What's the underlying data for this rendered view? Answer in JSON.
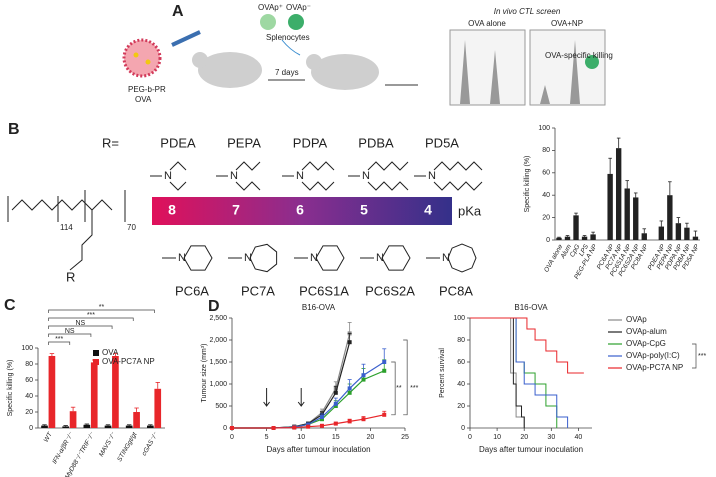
{
  "panels": {
    "a": "A",
    "b": "B",
    "c": "C",
    "d": "D"
  },
  "schematic": {
    "polymer": "PEG-b-PR",
    "antigen": "OVA",
    "interval": "7 days",
    "pulsed": "OVAp⁺",
    "unpulsed": "OVAp⁻",
    "cells": "Splenocytes",
    "screen": "In vivo CTL screen",
    "control": "OVA alone",
    "treated": "OVA+NP",
    "killing": "OVA-specific killing"
  },
  "polymer": {
    "r_label": "R=",
    "peg_units": "114",
    "pr_units": "70",
    "linear": [
      "PDEA",
      "PEPA",
      "PDPA",
      "PDBA",
      "PD5A"
    ],
    "cyclic": [
      "PC6A",
      "PC7A",
      "PC6S1A",
      "PC6S2A",
      "PC8A"
    ],
    "pka_values": [
      8,
      7,
      6,
      5,
      4
    ],
    "pka_label": "pKa"
  },
  "chart_data": [
    {
      "type": "bar",
      "ylabel": "Specific killing (%)",
      "categories": [
        "OVA alone",
        "Alum",
        "CpG",
        "LPS",
        "PEG-PLA NP",
        null,
        "PC6A NP",
        "PC7A NP",
        "PC6S1A NP",
        "PC6S2A NP",
        "PC8A NP",
        null,
        "PDEA NP",
        "PEPA NP",
        "PDPA NP",
        "PDBA NP",
        "PD5A NP"
      ],
      "values": [
        2,
        3,
        22,
        3,
        5,
        null,
        59,
        82,
        46,
        38,
        6,
        null,
        12,
        40,
        15,
        11,
        3
      ],
      "errors": [
        0.5,
        1,
        2,
        1,
        2,
        null,
        14,
        9,
        7,
        4,
        4,
        null,
        5,
        12,
        5,
        4,
        5
      ],
      "color": "#222222",
      "ylim": [
        0,
        100
      ],
      "yticks": [
        0,
        20,
        40,
        60,
        80,
        100
      ]
    },
    {
      "type": "bar",
      "ylabel": "Specific killing (%)",
      "categories": [
        "WT",
        "IFN-α/βR⁻/⁻",
        "MyD88⁻/⁻TRIF⁻/⁻",
        "MAVS⁻/⁻",
        "STINGgt/gt",
        "cGAS⁻/⁻"
      ],
      "series": [
        {
          "name": "OVA",
          "color": "#111111",
          "values": [
            3,
            2,
            4,
            3,
            3,
            3
          ],
          "errors": [
            1,
            1,
            1,
            1,
            1,
            1
          ]
        },
        {
          "name": "OVA-PC7A NP",
          "color": "#e8262a",
          "values": [
            90,
            21,
            82,
            90,
            20,
            49
          ],
          "errors": [
            3,
            5,
            3,
            3,
            5,
            8
          ]
        }
      ],
      "ylim": [
        0,
        100
      ],
      "yticks": [
        0,
        20,
        40,
        60,
        80,
        100
      ],
      "annotations": [
        "**",
        "***",
        "NS",
        "NS",
        "***"
      ]
    },
    {
      "type": "line",
      "title": "B16-OVA",
      "xlabel": "Days after tumour inoculation",
      "ylabel": "Tumour size (mm³)",
      "x": [
        0,
        6,
        9,
        11,
        13,
        15,
        17,
        19,
        22
      ],
      "series": [
        {
          "color": "#888888",
          "values": [
            0,
            0,
            30,
            100,
            350,
            900,
            2150,
            null,
            null
          ],
          "errors": [
            0,
            0,
            10,
            30,
            80,
            150,
            250,
            null,
            null
          ]
        },
        {
          "color": "#222222",
          "values": [
            0,
            0,
            30,
            100,
            300,
            800,
            1950,
            null,
            null
          ],
          "errors": [
            0,
            0,
            10,
            30,
            70,
            150,
            200,
            null,
            null
          ]
        },
        {
          "color": "#2ca02c",
          "values": [
            0,
            0,
            20,
            80,
            200,
            500,
            800,
            1100,
            1300
          ],
          "errors": [
            0,
            0,
            10,
            20,
            60,
            120,
            200,
            250,
            250
          ]
        },
        {
          "color": "#3a5fcd",
          "values": [
            0,
            0,
            20,
            80,
            250,
            550,
            900,
            1200,
            1500
          ],
          "errors": [
            0,
            0,
            10,
            20,
            70,
            130,
            200,
            250,
            300
          ]
        },
        {
          "color": "#e8262a",
          "values": [
            0,
            0,
            10,
            30,
            50,
            100,
            150,
            200,
            300
          ],
          "errors": [
            0,
            0,
            5,
            10,
            20,
            30,
            50,
            60,
            80
          ]
        }
      ],
      "xlim": [
        0,
        25
      ],
      "xticks": [
        0,
        5,
        10,
        15,
        20,
        25
      ],
      "ylim": [
        0,
        2500
      ],
      "yticks": [
        0,
        500,
        {
          "value": 1000,
          "label": "1,000"
        },
        {
          "value": 1500,
          "label": "1,500"
        },
        {
          "value": 2000,
          "label": "2,000"
        },
        {
          "value": 2500,
          "label": "2,500"
        }
      ],
      "annotations": [
        "**",
        "***"
      ]
    },
    {
      "type": "step",
      "title": "B16-OVA",
      "xlabel": "Days after tumour inoculation",
      "ylabel": "Percent survival",
      "series": [
        {
          "name": "OVAp",
          "color": "#888888",
          "x": [
            0,
            15,
            17,
            20
          ],
          "values": [
            100,
            50,
            10,
            0
          ]
        },
        {
          "name": "OVAp-alum",
          "color": "#222222",
          "x": [
            0,
            16,
            17,
            19,
            20
          ],
          "values": [
            100,
            40,
            20,
            10,
            0
          ]
        },
        {
          "name": "OVAp-CpG",
          "color": "#2ca02c",
          "x": [
            0,
            17,
            20,
            24,
            28,
            32
          ],
          "values": [
            100,
            60,
            50,
            40,
            20,
            0
          ]
        },
        {
          "name": "OVAp-poly(I:C)",
          "color": "#3a5fcd",
          "x": [
            0,
            17,
            20,
            24,
            32,
            36
          ],
          "values": [
            100,
            60,
            40,
            30,
            10,
            0
          ]
        },
        {
          "name": "OVAp-PC7A NP",
          "color": "#e8262a",
          "x": [
            0,
            21,
            24,
            28,
            32,
            36,
            42
          ],
          "values": [
            100,
            90,
            80,
            70,
            60,
            50,
            50
          ]
        }
      ],
      "xlim": [
        0,
        45
      ],
      "xticks": [
        0,
        10,
        20,
        30,
        40
      ],
      "ylim": [
        0,
        100
      ],
      "yticks": [
        0,
        20,
        40,
        60,
        80,
        100
      ],
      "annotations": [
        "***"
      ]
    }
  ]
}
